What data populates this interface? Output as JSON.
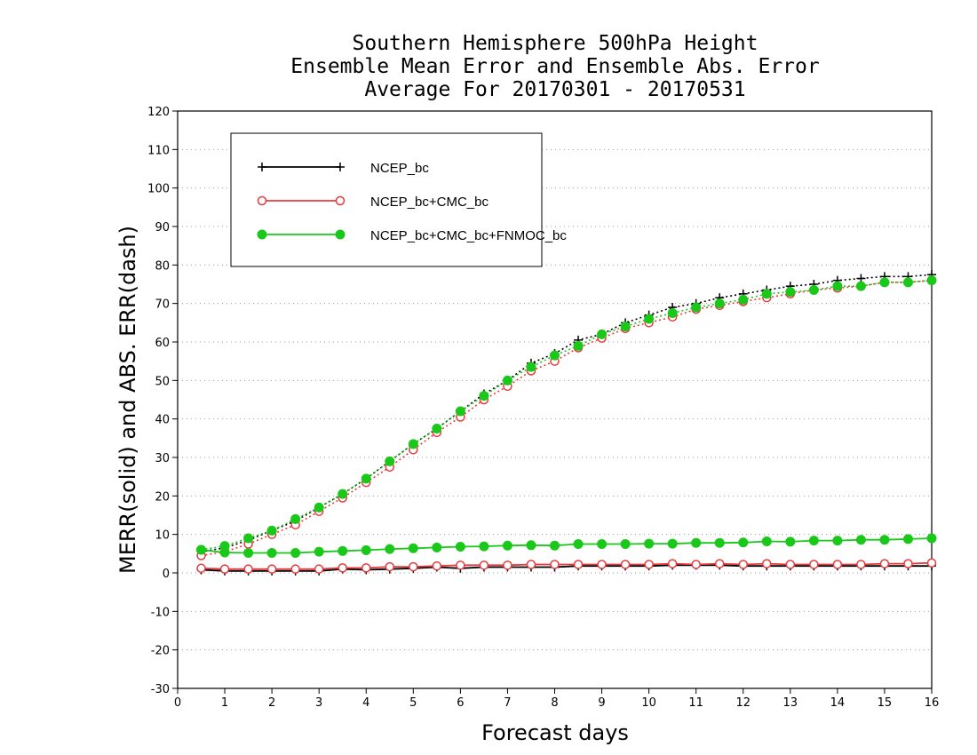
{
  "chart_data": {
    "type": "line",
    "title_lines": [
      "Southern Hemisphere 500hPa Height",
      "Ensemble Mean Error and Ensemble Abs. Error",
      "Average For 20170301 - 20170531"
    ],
    "xlabel": "Forecast days",
    "ylabel": "MERR(solid) and ABS. ERR(dash)",
    "xlim": [
      0,
      16
    ],
    "ylim": [
      -30,
      120
    ],
    "xticks": [
      "0",
      "1",
      "2",
      "3",
      "4",
      "5",
      "6",
      "7",
      "8",
      "9",
      "10",
      "11",
      "12",
      "13",
      "14",
      "15",
      "16"
    ],
    "yticks": [
      "-30",
      "-20",
      "-10",
      "0",
      "10",
      "20",
      "30",
      "40",
      "50",
      "60",
      "70",
      "80",
      "90",
      "100",
      "110",
      "120"
    ],
    "grid": "dotted horizontal",
    "legend_position": "top-left",
    "x": [
      0.5,
      1,
      1.5,
      2,
      2.5,
      3,
      3.5,
      4,
      4.5,
      5,
      5.5,
      6,
      6.5,
      7,
      7.5,
      8,
      8.5,
      9,
      9.5,
      10,
      10.5,
      11,
      11.5,
      12,
      12.5,
      13,
      13.5,
      14,
      14.5,
      15,
      15.5,
      16
    ],
    "series": [
      {
        "name": "NCEP_bc",
        "color": "#000000",
        "marker": "plus",
        "merr": [
          0.8,
          0.5,
          0.5,
          0.5,
          0.5,
          0.5,
          1.0,
          0.8,
          1.0,
          1.2,
          1.5,
          1.2,
          1.5,
          1.5,
          1.5,
          1.5,
          1.8,
          1.8,
          1.8,
          1.8,
          2.0,
          2.0,
          2.0,
          1.8,
          1.8,
          1.8,
          1.8,
          1.8,
          1.8,
          1.8,
          1.8,
          1.8
        ],
        "abs_err": [
          5.5,
          6.5,
          8.5,
          11,
          13.5,
          17,
          20.5,
          24.5,
          29,
          33.5,
          37.5,
          42,
          46.5,
          50,
          54.5,
          57,
          60.5,
          62,
          65,
          67,
          69,
          70,
          71.5,
          72.5,
          73.5,
          74.5,
          75,
          76,
          76.5,
          77,
          77,
          77.5
        ]
      },
      {
        "name": "NCEP_bc+CMC_bc",
        "color": "#e8393c",
        "marker": "open-circle",
        "merr": [
          1.2,
          1.0,
          1.0,
          1.0,
          1.0,
          1.0,
          1.3,
          1.3,
          1.6,
          1.6,
          1.8,
          2.0,
          2.0,
          2.0,
          2.2,
          2.2,
          2.2,
          2.2,
          2.2,
          2.2,
          2.4,
          2.2,
          2.4,
          2.2,
          2.4,
          2.2,
          2.2,
          2.2,
          2.2,
          2.4,
          2.4,
          2.6
        ],
        "abs_err": [
          4.5,
          5.5,
          7.5,
          10,
          12.5,
          16,
          19.5,
          23.5,
          27.5,
          32,
          36.5,
          40.5,
          45,
          48.5,
          52.5,
          55,
          58.5,
          61,
          63.5,
          65,
          66.5,
          68.5,
          69.5,
          70.5,
          71.5,
          72.5,
          73.5,
          74,
          74.5,
          75.5,
          75.5,
          76
        ]
      },
      {
        "name": "NCEP_bc+CMC_bc+FNMOC_bc",
        "color": "#1ac81a",
        "marker": "filled-circle",
        "merr": [
          6.0,
          5.3,
          5.2,
          5.2,
          5.2,
          5.5,
          5.7,
          5.9,
          6.2,
          6.4,
          6.6,
          6.8,
          6.9,
          7.1,
          7.2,
          7.1,
          7.5,
          7.5,
          7.5,
          7.6,
          7.6,
          7.8,
          7.8,
          7.9,
          8.2,
          8.1,
          8.4,
          8.4,
          8.6,
          8.6,
          8.8,
          9.0
        ],
        "abs_err": [
          6,
          7,
          9,
          11,
          14,
          17,
          20.5,
          24.5,
          29,
          33.5,
          37.5,
          42,
          46,
          50,
          53.5,
          56.5,
          59,
          62,
          64,
          66,
          67.5,
          69,
          70,
          71,
          72.5,
          73,
          73.5,
          74.5,
          74.5,
          75.5,
          75.5,
          76
        ]
      }
    ]
  }
}
